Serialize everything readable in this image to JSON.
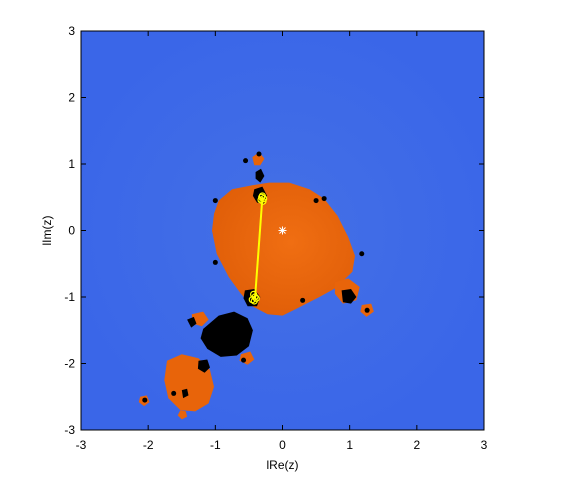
{
  "chart_data": {
    "type": "scatter",
    "title": "",
    "xlabel": "lRe(z)",
    "ylabel": "lIm(z)",
    "xlim": [
      -3,
      3
    ],
    "ylim": [
      -3,
      3
    ],
    "x_ticks": [
      -3,
      -2,
      -1,
      0,
      1,
      2,
      3
    ],
    "y_ticks": [
      -3,
      -2,
      -1,
      0,
      1,
      2,
      3
    ],
    "x_tick_labels": [
      "-3",
      "-2",
      "-1",
      "0",
      "1",
      "2",
      "3"
    ],
    "y_tick_labels": [
      "-3",
      "-2",
      "-1",
      "0",
      "1",
      "2",
      "3"
    ],
    "grid": false,
    "legend": "none",
    "colors": {
      "escape_region": "#3a66e8",
      "escape_region_inner": "#3f6ae0",
      "basin": "#e8640a",
      "basin_inner": "#f06a0c",
      "non_escaping": "#000000",
      "orbit": "#ffff00",
      "center_marker": "#ffffff"
    },
    "orbit_path": {
      "x": [
        -0.3,
        -0.41
      ],
      "y": [
        0.49,
        -1.03
      ]
    },
    "attractor_points": {
      "x": [
        -0.3,
        -0.28,
        -0.32,
        -0.29,
        -0.31,
        -0.43,
        -0.41,
        -0.45,
        -0.39,
        -0.42
      ],
      "y": [
        0.52,
        0.48,
        0.46,
        0.44,
        0.5,
        -0.96,
        -1.0,
        -1.04,
        -1.02,
        -1.06
      ]
    },
    "center_marker": {
      "x": 0.0,
      "y": 0.0
    }
  }
}
